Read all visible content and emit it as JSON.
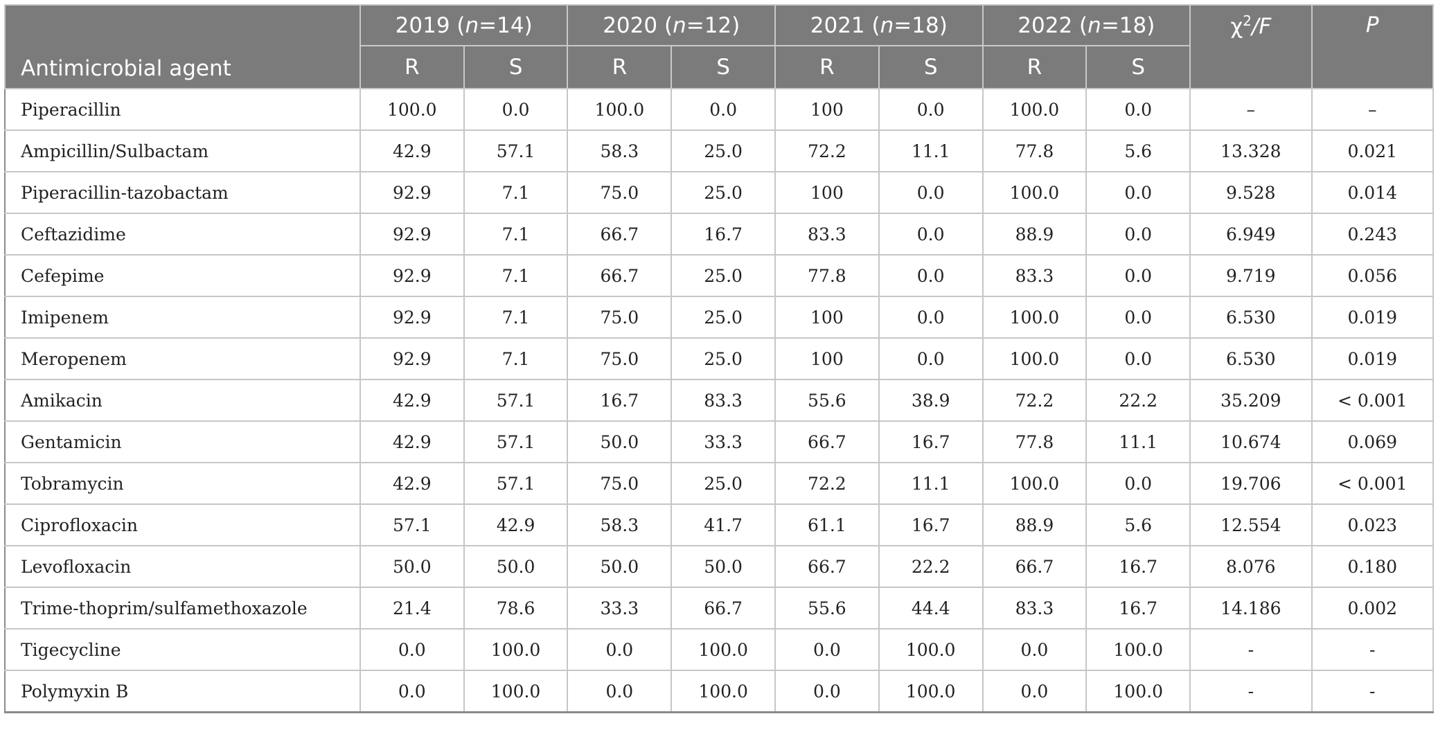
{
  "header": {
    "agent_label": "Antimicrobial agent",
    "years": [
      {
        "year": "2019",
        "n_label": "n",
        "n_value": "=14"
      },
      {
        "year": "2020",
        "n_label": "n",
        "n_value": "=12"
      },
      {
        "year": "2021",
        "n_label": "n",
        "n_value": "=18"
      },
      {
        "year": "2022",
        "n_label": "n",
        "n_value": "=18"
      }
    ],
    "resistant_label": "R",
    "sensitive_label": "S",
    "chi_label": "χ",
    "chi_sup": "2",
    "chi_f": "/F",
    "p_label": "P"
  },
  "rows": [
    {
      "agent": "Piperacillin",
      "v": [
        "100.0",
        "0.0",
        "100.0",
        "0.0",
        "100",
        "0.0",
        "100.0",
        "0.0"
      ],
      "chi": "–",
      "p": "–"
    },
    {
      "agent": "Ampicillin/Sulbactam",
      "v": [
        "42.9",
        "57.1",
        "58.3",
        "25.0",
        "72.2",
        "11.1",
        "77.8",
        "5.6"
      ],
      "chi": "13.328",
      "p": "0.021"
    },
    {
      "agent": "Piperacillin-tazobactam",
      "v": [
        "92.9",
        "7.1",
        "75.0",
        "25.0",
        "100",
        "0.0",
        "100.0",
        "0.0"
      ],
      "chi": "9.528",
      "p": "0.014"
    },
    {
      "agent": "Ceftazidime",
      "v": [
        "92.9",
        "7.1",
        "66.7",
        "16.7",
        "83.3",
        "0.0",
        "88.9",
        "0.0"
      ],
      "chi": "6.949",
      "p": "0.243"
    },
    {
      "agent": "Cefepime",
      "v": [
        "92.9",
        "7.1",
        "66.7",
        "25.0",
        "77.8",
        "0.0",
        "83.3",
        "0.0"
      ],
      "chi": "9.719",
      "p": "0.056"
    },
    {
      "agent": "Imipenem",
      "v": [
        "92.9",
        "7.1",
        "75.0",
        "25.0",
        "100",
        "0.0",
        "100.0",
        "0.0"
      ],
      "chi": "6.530",
      "p": "0.019"
    },
    {
      "agent": "Meropenem",
      "v": [
        "92.9",
        "7.1",
        "75.0",
        "25.0",
        "100",
        "0.0",
        "100.0",
        "0.0"
      ],
      "chi": "6.530",
      "p": "0.019"
    },
    {
      "agent": "Amikacin",
      "v": [
        "42.9",
        "57.1",
        "16.7",
        "83.3",
        "55.6",
        "38.9",
        "72.2",
        "22.2"
      ],
      "chi": "35.209",
      "p": "< 0.001"
    },
    {
      "agent": "Gentamicin",
      "v": [
        "42.9",
        "57.1",
        "50.0",
        "33.3",
        "66.7",
        "16.7",
        "77.8",
        "11.1"
      ],
      "chi": "10.674",
      "p": "0.069"
    },
    {
      "agent": "Tobramycin",
      "v": [
        "42.9",
        "57.1",
        "75.0",
        "25.0",
        "72.2",
        "11.1",
        "100.0",
        "0.0"
      ],
      "chi": "19.706",
      "p": "< 0.001"
    },
    {
      "agent": "Ciprofloxacin",
      "v": [
        "57.1",
        "42.9",
        "58.3",
        "41.7",
        "61.1",
        "16.7",
        "88.9",
        "5.6"
      ],
      "chi": "12.554",
      "p": "0.023"
    },
    {
      "agent": "Levofloxacin",
      "v": [
        "50.0",
        "50.0",
        "50.0",
        "50.0",
        "66.7",
        "22.2",
        "66.7",
        "16.7"
      ],
      "chi": "8.076",
      "p": "0.180"
    },
    {
      "agent": "Trime-thoprim/sulfamethoxazole",
      "v": [
        "21.4",
        "78.6",
        "33.3",
        "66.7",
        "55.6",
        "44.4",
        "83.3",
        "16.7"
      ],
      "chi": "14.186",
      "p": "0.002"
    },
    {
      "agent": "Tigecycline",
      "v": [
        "0.0",
        "100.0",
        "0.0",
        "100.0",
        "0.0",
        "100.0",
        "0.0",
        "100.0"
      ],
      "chi": "-",
      "p": "-"
    },
    {
      "agent": "Polymyxin B",
      "v": [
        "0.0",
        "100.0",
        "0.0",
        "100.0",
        "0.0",
        "100.0",
        "0.0",
        "100.0"
      ],
      "chi": "-",
      "p": "-"
    }
  ]
}
